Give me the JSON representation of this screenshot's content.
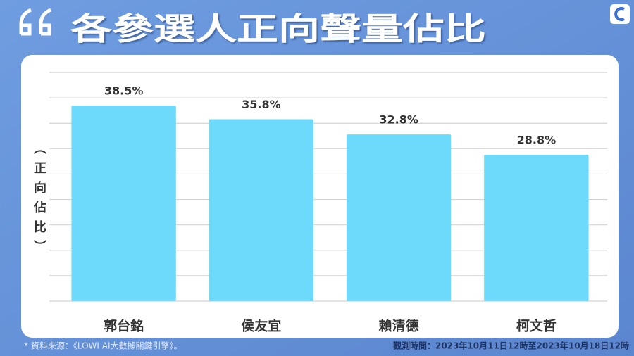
{
  "chart_data": {
    "type": "bar",
    "title": "各參選人正向聲量佔比",
    "y_label": "（正向佔比）",
    "categories": [
      "郭台銘",
      "侯友宜",
      "賴清德",
      "柯文哲"
    ],
    "values": [
      38.5,
      35.8,
      32.8,
      28.8
    ],
    "value_labels": [
      "38.5%",
      "35.8%",
      "32.8%",
      "28.8%"
    ],
    "color": "#6dd9fb",
    "ylim": [
      0,
      45
    ],
    "yticks": [
      0,
      5,
      10,
      15,
      20,
      25,
      30,
      35,
      40,
      45
    ],
    "grid": true,
    "source_note": "* 資料來源：《LOWI AI大數據關鍵引擎》。",
    "period_note": "觀測時間：2023年10月11日12時至2023年10月18日12時"
  }
}
